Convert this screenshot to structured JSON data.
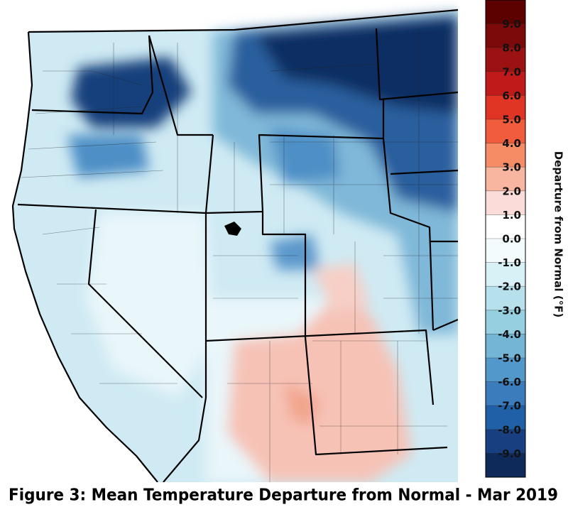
{
  "title": "Figure 3: Mean Temperature Departure from Normal - Mar 2019",
  "colorbar": {
    "label": "Departure from Normal (°F)",
    "lim": [
      -10,
      10
    ],
    "colors": [
      "#5c0000",
      "#7c0a0a",
      "#9c1212",
      "#c01a1a",
      "#e03424",
      "#f05c3c",
      "#f58c66",
      "#f8b6a0",
      "#fcdcd8",
      "#ffffff",
      "#f4fbfd",
      "#d8f1f7",
      "#b6e1ec",
      "#96cfe0",
      "#74b5d6",
      "#5298cb",
      "#3a7cbc",
      "#2060a6",
      "#183f80",
      "#0e2a5a"
    ],
    "ticks": [
      {
        "value": 9,
        "label": "9.0"
      },
      {
        "value": 8,
        "label": "8.0"
      },
      {
        "value": 7,
        "label": "7.0"
      },
      {
        "value": 6,
        "label": "6.0"
      },
      {
        "value": 5,
        "label": "5.0"
      },
      {
        "value": 4,
        "label": "4.0"
      },
      {
        "value": 3,
        "label": "3.0"
      },
      {
        "value": 2,
        "label": "2.0"
      },
      {
        "value": 1,
        "label": "1.0"
      },
      {
        "value": 0,
        "label": "0.0"
      },
      {
        "value": -1,
        "label": "-1.0"
      },
      {
        "value": -2,
        "label": "-2.0"
      },
      {
        "value": -3,
        "label": "-3.0"
      },
      {
        "value": -4,
        "label": "-4.0"
      },
      {
        "value": -5,
        "label": "-5.0"
      },
      {
        "value": -6,
        "label": "-6.0"
      },
      {
        "value": -7,
        "label": "-7.0"
      },
      {
        "value": -8,
        "label": "-8.0"
      },
      {
        "value": -9,
        "label": "-9.0"
      }
    ]
  }
}
